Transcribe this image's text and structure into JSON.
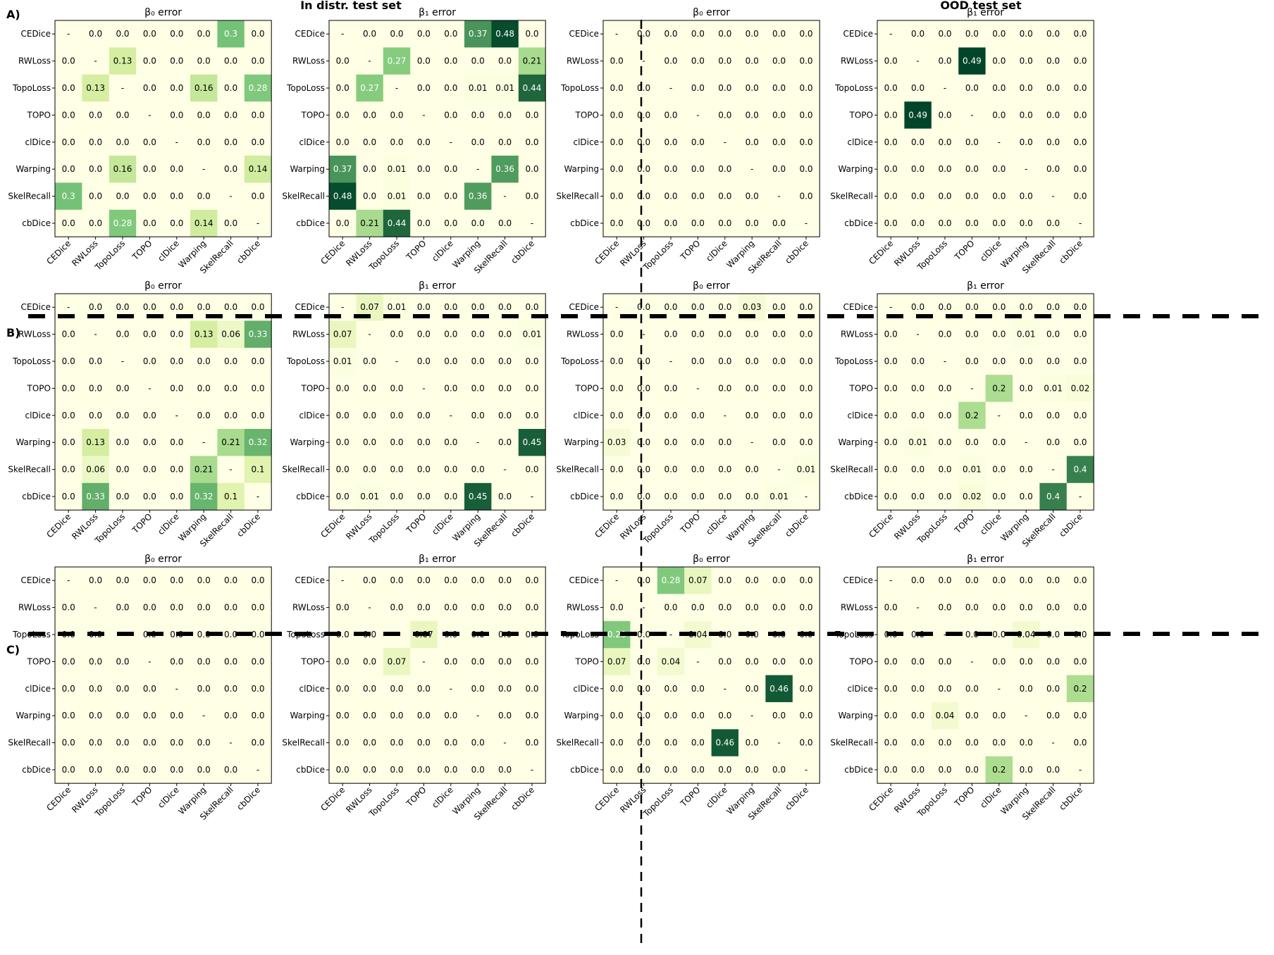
{
  "figure": {
    "headers": [
      "In distr. test set",
      "OOD test set"
    ],
    "row_labels": [
      "A)",
      "B)",
      "C)"
    ],
    "panel_titles": {
      "b0": "β₀ error",
      "b1": "β₁ error"
    },
    "cmap": {
      "low": "#ffffe5",
      "mid1": "#d9f0a3",
      "mid2": "#78c679",
      "high": "#004529"
    },
    "vmax": 0.49
  },
  "chart_data": [
    {
      "type": "heatmap",
      "row": "A)",
      "set": "In distr. test set",
      "title": "β₀ error",
      "categories": [
        "CEDice",
        "RWLoss",
        "TopoLoss",
        "TOPO",
        "clDice",
        "Warping",
        "SkelRecall",
        "cbDice"
      ],
      "matrix": [
        [
          null,
          0.0,
          0.0,
          0.0,
          0.0,
          0.0,
          0.3,
          0.0
        ],
        [
          0.0,
          null,
          0.13,
          0.0,
          0.0,
          0.0,
          0.0,
          0.0
        ],
        [
          0.0,
          0.13,
          null,
          0.0,
          0.0,
          0.16,
          0.0,
          0.28
        ],
        [
          0.0,
          0.0,
          0.0,
          null,
          0.0,
          0.0,
          0.0,
          0.0
        ],
        [
          0.0,
          0.0,
          0.0,
          0.0,
          null,
          0.0,
          0.0,
          0.0
        ],
        [
          0.0,
          0.0,
          0.16,
          0.0,
          0.0,
          null,
          0.0,
          0.14
        ],
        [
          0.3,
          0.0,
          0.0,
          0.0,
          0.0,
          0.0,
          null,
          0.0
        ],
        [
          0.0,
          0.0,
          0.28,
          0.0,
          0.0,
          0.14,
          0.0,
          null
        ]
      ]
    },
    {
      "type": "heatmap",
      "row": "A)",
      "set": "In distr. test set",
      "title": "β₁ error",
      "categories": [
        "CEDice",
        "RWLoss",
        "TopoLoss",
        "TOPO",
        "clDice",
        "Warping",
        "SkelRecall",
        "cbDice"
      ],
      "matrix": [
        [
          null,
          0.0,
          0.0,
          0.0,
          0.0,
          0.37,
          0.48,
          0.0
        ],
        [
          0.0,
          null,
          0.27,
          0.0,
          0.0,
          0.0,
          0.0,
          0.21
        ],
        [
          0.0,
          0.27,
          null,
          0.0,
          0.0,
          0.01,
          0.01,
          0.44
        ],
        [
          0.0,
          0.0,
          0.0,
          null,
          0.0,
          0.0,
          0.0,
          0.0
        ],
        [
          0.0,
          0.0,
          0.0,
          0.0,
          null,
          0.0,
          0.0,
          0.0
        ],
        [
          0.37,
          0.0,
          0.01,
          0.0,
          0.0,
          null,
          0.36,
          0.0
        ],
        [
          0.48,
          0.0,
          0.01,
          0.0,
          0.0,
          0.36,
          null,
          0.0
        ],
        [
          0.0,
          0.21,
          0.44,
          0.0,
          0.0,
          0.0,
          0.0,
          null
        ]
      ]
    },
    {
      "type": "heatmap",
      "row": "A)",
      "set": "OOD test set",
      "title": "β₀ error",
      "categories": [
        "CEDice",
        "RWLoss",
        "TopoLoss",
        "TOPO",
        "clDice",
        "Warping",
        "SkelRecall",
        "cbDice"
      ],
      "matrix": [
        [
          null,
          0.0,
          0.0,
          0.0,
          0.0,
          0.0,
          0.0,
          0.0
        ],
        [
          0.0,
          null,
          0.0,
          0.0,
          0.0,
          0.0,
          0.0,
          0.0
        ],
        [
          0.0,
          0.0,
          null,
          0.0,
          0.0,
          0.0,
          0.0,
          0.0
        ],
        [
          0.0,
          0.0,
          0.0,
          null,
          0.0,
          0.0,
          0.0,
          0.0
        ],
        [
          0.0,
          0.0,
          0.0,
          0.0,
          null,
          0.0,
          0.0,
          0.0
        ],
        [
          0.0,
          0.0,
          0.0,
          0.0,
          0.0,
          null,
          0.0,
          0.0
        ],
        [
          0.0,
          0.0,
          0.0,
          0.0,
          0.0,
          0.0,
          null,
          0.0
        ],
        [
          0.0,
          0.0,
          0.0,
          0.0,
          0.0,
          0.0,
          0.0,
          null
        ]
      ]
    },
    {
      "type": "heatmap",
      "row": "A)",
      "set": "OOD test set",
      "title": "β₁ error",
      "categories": [
        "CEDice",
        "RWLoss",
        "TopoLoss",
        "TOPO",
        "clDice",
        "Warping",
        "SkelRecall",
        "cbDice"
      ],
      "matrix": [
        [
          null,
          0.0,
          0.0,
          0.0,
          0.0,
          0.0,
          0.0,
          0.0
        ],
        [
          0.0,
          null,
          0.0,
          0.49,
          0.0,
          0.0,
          0.0,
          0.0
        ],
        [
          0.0,
          0.0,
          null,
          0.0,
          0.0,
          0.0,
          0.0,
          0.0
        ],
        [
          0.0,
          0.49,
          0.0,
          null,
          0.0,
          0.0,
          0.0,
          0.0
        ],
        [
          0.0,
          0.0,
          0.0,
          0.0,
          null,
          0.0,
          0.0,
          0.0
        ],
        [
          0.0,
          0.0,
          0.0,
          0.0,
          0.0,
          null,
          0.0,
          0.0
        ],
        [
          0.0,
          0.0,
          0.0,
          0.0,
          0.0,
          0.0,
          null,
          0.0
        ],
        [
          0.0,
          0.0,
          0.0,
          0.0,
          0.0,
          0.0,
          0.0,
          null
        ]
      ]
    },
    {
      "type": "heatmap",
      "row": "B)",
      "set": "In distr. test set",
      "title": "β₀ error",
      "categories": [
        "CEDice",
        "RWLoss",
        "TopoLoss",
        "TOPO",
        "clDice",
        "Warping",
        "SkelRecall",
        "cbDice"
      ],
      "matrix": [
        [
          null,
          0.0,
          0.0,
          0.0,
          0.0,
          0.0,
          0.0,
          0.0
        ],
        [
          0.0,
          null,
          0.0,
          0.0,
          0.0,
          0.13,
          0.06,
          0.33
        ],
        [
          0.0,
          0.0,
          null,
          0.0,
          0.0,
          0.0,
          0.0,
          0.0
        ],
        [
          0.0,
          0.0,
          0.0,
          null,
          0.0,
          0.0,
          0.0,
          0.0
        ],
        [
          0.0,
          0.0,
          0.0,
          0.0,
          null,
          0.0,
          0.0,
          0.0
        ],
        [
          0.0,
          0.13,
          0.0,
          0.0,
          0.0,
          null,
          0.21,
          0.32
        ],
        [
          0.0,
          0.06,
          0.0,
          0.0,
          0.0,
          0.21,
          null,
          0.1
        ],
        [
          0.0,
          0.33,
          0.0,
          0.0,
          0.0,
          0.32,
          0.1,
          null
        ]
      ]
    },
    {
      "type": "heatmap",
      "row": "B)",
      "set": "In distr. test set",
      "title": "β₁ error",
      "categories": [
        "CEDice",
        "RWLoss",
        "TopoLoss",
        "TOPO",
        "clDice",
        "Warping",
        "SkelRecall",
        "cbDice"
      ],
      "matrix": [
        [
          null,
          0.07,
          0.01,
          0.0,
          0.0,
          0.0,
          0.0,
          0.0
        ],
        [
          0.07,
          null,
          0.0,
          0.0,
          0.0,
          0.0,
          0.0,
          0.01
        ],
        [
          0.01,
          0.0,
          null,
          0.0,
          0.0,
          0.0,
          0.0,
          0.0
        ],
        [
          0.0,
          0.0,
          0.0,
          null,
          0.0,
          0.0,
          0.0,
          0.0
        ],
        [
          0.0,
          0.0,
          0.0,
          0.0,
          null,
          0.0,
          0.0,
          0.0
        ],
        [
          0.0,
          0.0,
          0.0,
          0.0,
          0.0,
          null,
          0.0,
          0.45
        ],
        [
          0.0,
          0.0,
          0.0,
          0.0,
          0.0,
          0.0,
          null,
          0.0
        ],
        [
          0.0,
          0.01,
          0.0,
          0.0,
          0.0,
          0.45,
          0.0,
          null
        ]
      ]
    },
    {
      "type": "heatmap",
      "row": "B)",
      "set": "OOD test set",
      "title": "β₀ error",
      "categories": [
        "CEDice",
        "RWLoss",
        "TopoLoss",
        "TOPO",
        "clDice",
        "Warping",
        "SkelRecall",
        "cbDice"
      ],
      "matrix": [
        [
          null,
          0.0,
          0.0,
          0.0,
          0.0,
          0.03,
          0.0,
          0.0
        ],
        [
          0.0,
          null,
          0.0,
          0.0,
          0.0,
          0.0,
          0.0,
          0.0
        ],
        [
          0.0,
          0.0,
          null,
          0.0,
          0.0,
          0.0,
          0.0,
          0.0
        ],
        [
          0.0,
          0.0,
          0.0,
          null,
          0.0,
          0.0,
          0.0,
          0.0
        ],
        [
          0.0,
          0.0,
          0.0,
          0.0,
          null,
          0.0,
          0.0,
          0.0
        ],
        [
          0.03,
          0.0,
          0.0,
          0.0,
          0.0,
          null,
          0.0,
          0.0
        ],
        [
          0.0,
          0.0,
          0.0,
          0.0,
          0.0,
          0.0,
          null,
          0.01
        ],
        [
          0.0,
          0.0,
          0.0,
          0.0,
          0.0,
          0.0,
          0.01,
          null
        ]
      ]
    },
    {
      "type": "heatmap",
      "row": "B)",
      "set": "OOD test set",
      "title": "β₁ error",
      "categories": [
        "CEDice",
        "RWLoss",
        "TopoLoss",
        "TOPO",
        "clDice",
        "Warping",
        "SkelRecall",
        "cbDice"
      ],
      "matrix": [
        [
          null,
          0.0,
          0.0,
          0.0,
          0.0,
          0.0,
          0.0,
          0.0
        ],
        [
          0.0,
          null,
          0.0,
          0.0,
          0.0,
          0.01,
          0.0,
          0.0
        ],
        [
          0.0,
          0.0,
          null,
          0.0,
          0.0,
          0.0,
          0.0,
          0.0
        ],
        [
          0.0,
          0.0,
          0.0,
          null,
          0.2,
          0.0,
          0.01,
          0.02
        ],
        [
          0.0,
          0.0,
          0.0,
          0.2,
          null,
          0.0,
          0.0,
          0.0
        ],
        [
          0.0,
          0.01,
          0.0,
          0.0,
          0.0,
          null,
          0.0,
          0.0
        ],
        [
          0.0,
          0.0,
          0.0,
          0.01,
          0.0,
          0.0,
          null,
          0.4
        ],
        [
          0.0,
          0.0,
          0.0,
          0.02,
          0.0,
          0.0,
          0.4,
          null
        ]
      ]
    },
    {
      "type": "heatmap",
      "row": "C)",
      "set": "In distr. test set",
      "title": "β₀ error",
      "categories": [
        "CEDice",
        "RWLoss",
        "TopoLoss",
        "TOPO",
        "clDice",
        "Warping",
        "SkelRecall",
        "cbDice"
      ],
      "matrix": [
        [
          null,
          0.0,
          0.0,
          0.0,
          0.0,
          0.0,
          0.0,
          0.0
        ],
        [
          0.0,
          null,
          0.0,
          0.0,
          0.0,
          0.0,
          0.0,
          0.0
        ],
        [
          0.0,
          0.0,
          null,
          0.0,
          0.0,
          0.0,
          0.0,
          0.0
        ],
        [
          0.0,
          0.0,
          0.0,
          null,
          0.0,
          0.0,
          0.0,
          0.0
        ],
        [
          0.0,
          0.0,
          0.0,
          0.0,
          null,
          0.0,
          0.0,
          0.0
        ],
        [
          0.0,
          0.0,
          0.0,
          0.0,
          0.0,
          null,
          0.0,
          0.0
        ],
        [
          0.0,
          0.0,
          0.0,
          0.0,
          0.0,
          0.0,
          null,
          0.0
        ],
        [
          0.0,
          0.0,
          0.0,
          0.0,
          0.0,
          0.0,
          0.0,
          null
        ]
      ]
    },
    {
      "type": "heatmap",
      "row": "C)",
      "set": "In distr. test set",
      "title": "β₁ error",
      "categories": [
        "CEDice",
        "RWLoss",
        "TopoLoss",
        "TOPO",
        "clDice",
        "Warping",
        "SkelRecall",
        "cbDice"
      ],
      "matrix": [
        [
          null,
          0.0,
          0.0,
          0.0,
          0.0,
          0.0,
          0.0,
          0.0
        ],
        [
          0.0,
          null,
          0.0,
          0.0,
          0.0,
          0.0,
          0.0,
          0.0
        ],
        [
          0.0,
          0.0,
          null,
          0.07,
          0.0,
          0.0,
          0.0,
          0.0
        ],
        [
          0.0,
          0.0,
          0.07,
          null,
          0.0,
          0.0,
          0.0,
          0.0
        ],
        [
          0.0,
          0.0,
          0.0,
          0.0,
          null,
          0.0,
          0.0,
          0.0
        ],
        [
          0.0,
          0.0,
          0.0,
          0.0,
          0.0,
          null,
          0.0,
          0.0
        ],
        [
          0.0,
          0.0,
          0.0,
          0.0,
          0.0,
          0.0,
          null,
          0.0
        ],
        [
          0.0,
          0.0,
          0.0,
          0.0,
          0.0,
          0.0,
          0.0,
          null
        ]
      ]
    },
    {
      "type": "heatmap",
      "row": "C)",
      "set": "OOD test set",
      "title": "β₀ error",
      "categories": [
        "CEDice",
        "RWLoss",
        "TopoLoss",
        "TOPO",
        "clDice",
        "Warping",
        "SkelRecall",
        "cbDice"
      ],
      "matrix": [
        [
          null,
          0.0,
          0.28,
          0.07,
          0.0,
          0.0,
          0.0,
          0.0
        ],
        [
          0.0,
          null,
          0.0,
          0.0,
          0.0,
          0.0,
          0.0,
          0.0
        ],
        [
          0.28,
          0.0,
          null,
          0.04,
          0.0,
          0.0,
          0.0,
          0.0
        ],
        [
          0.07,
          0.0,
          0.04,
          null,
          0.0,
          0.0,
          0.0,
          0.0
        ],
        [
          0.0,
          0.0,
          0.0,
          0.0,
          null,
          0.0,
          0.46,
          0.0
        ],
        [
          0.0,
          0.0,
          0.0,
          0.0,
          0.0,
          null,
          0.0,
          0.0
        ],
        [
          0.0,
          0.0,
          0.0,
          0.0,
          0.46,
          0.0,
          null,
          0.0
        ],
        [
          0.0,
          0.0,
          0.0,
          0.0,
          0.0,
          0.0,
          0.0,
          null
        ]
      ]
    },
    {
      "type": "heatmap",
      "row": "C)",
      "set": "OOD test set",
      "title": "β₁ error",
      "categories": [
        "CEDice",
        "RWLoss",
        "TopoLoss",
        "TOPO",
        "clDice",
        "Warping",
        "SkelRecall",
        "cbDice"
      ],
      "matrix": [
        [
          null,
          0.0,
          0.0,
          0.0,
          0.0,
          0.0,
          0.0,
          0.0
        ],
        [
          0.0,
          null,
          0.0,
          0.0,
          0.0,
          0.0,
          0.0,
          0.0
        ],
        [
          0.0,
          0.0,
          null,
          0.0,
          0.0,
          0.04,
          0.0,
          0.0
        ],
        [
          0.0,
          0.0,
          0.0,
          null,
          0.0,
          0.0,
          0.0,
          0.0
        ],
        [
          0.0,
          0.0,
          0.0,
          0.0,
          null,
          0.0,
          0.0,
          0.2
        ],
        [
          0.0,
          0.0,
          0.04,
          0.0,
          0.0,
          null,
          0.0,
          0.0
        ],
        [
          0.0,
          0.0,
          0.0,
          0.0,
          0.0,
          0.0,
          null,
          0.0
        ],
        [
          0.0,
          0.0,
          0.0,
          0.0,
          0.2,
          0.0,
          0.0,
          null
        ]
      ]
    }
  ]
}
